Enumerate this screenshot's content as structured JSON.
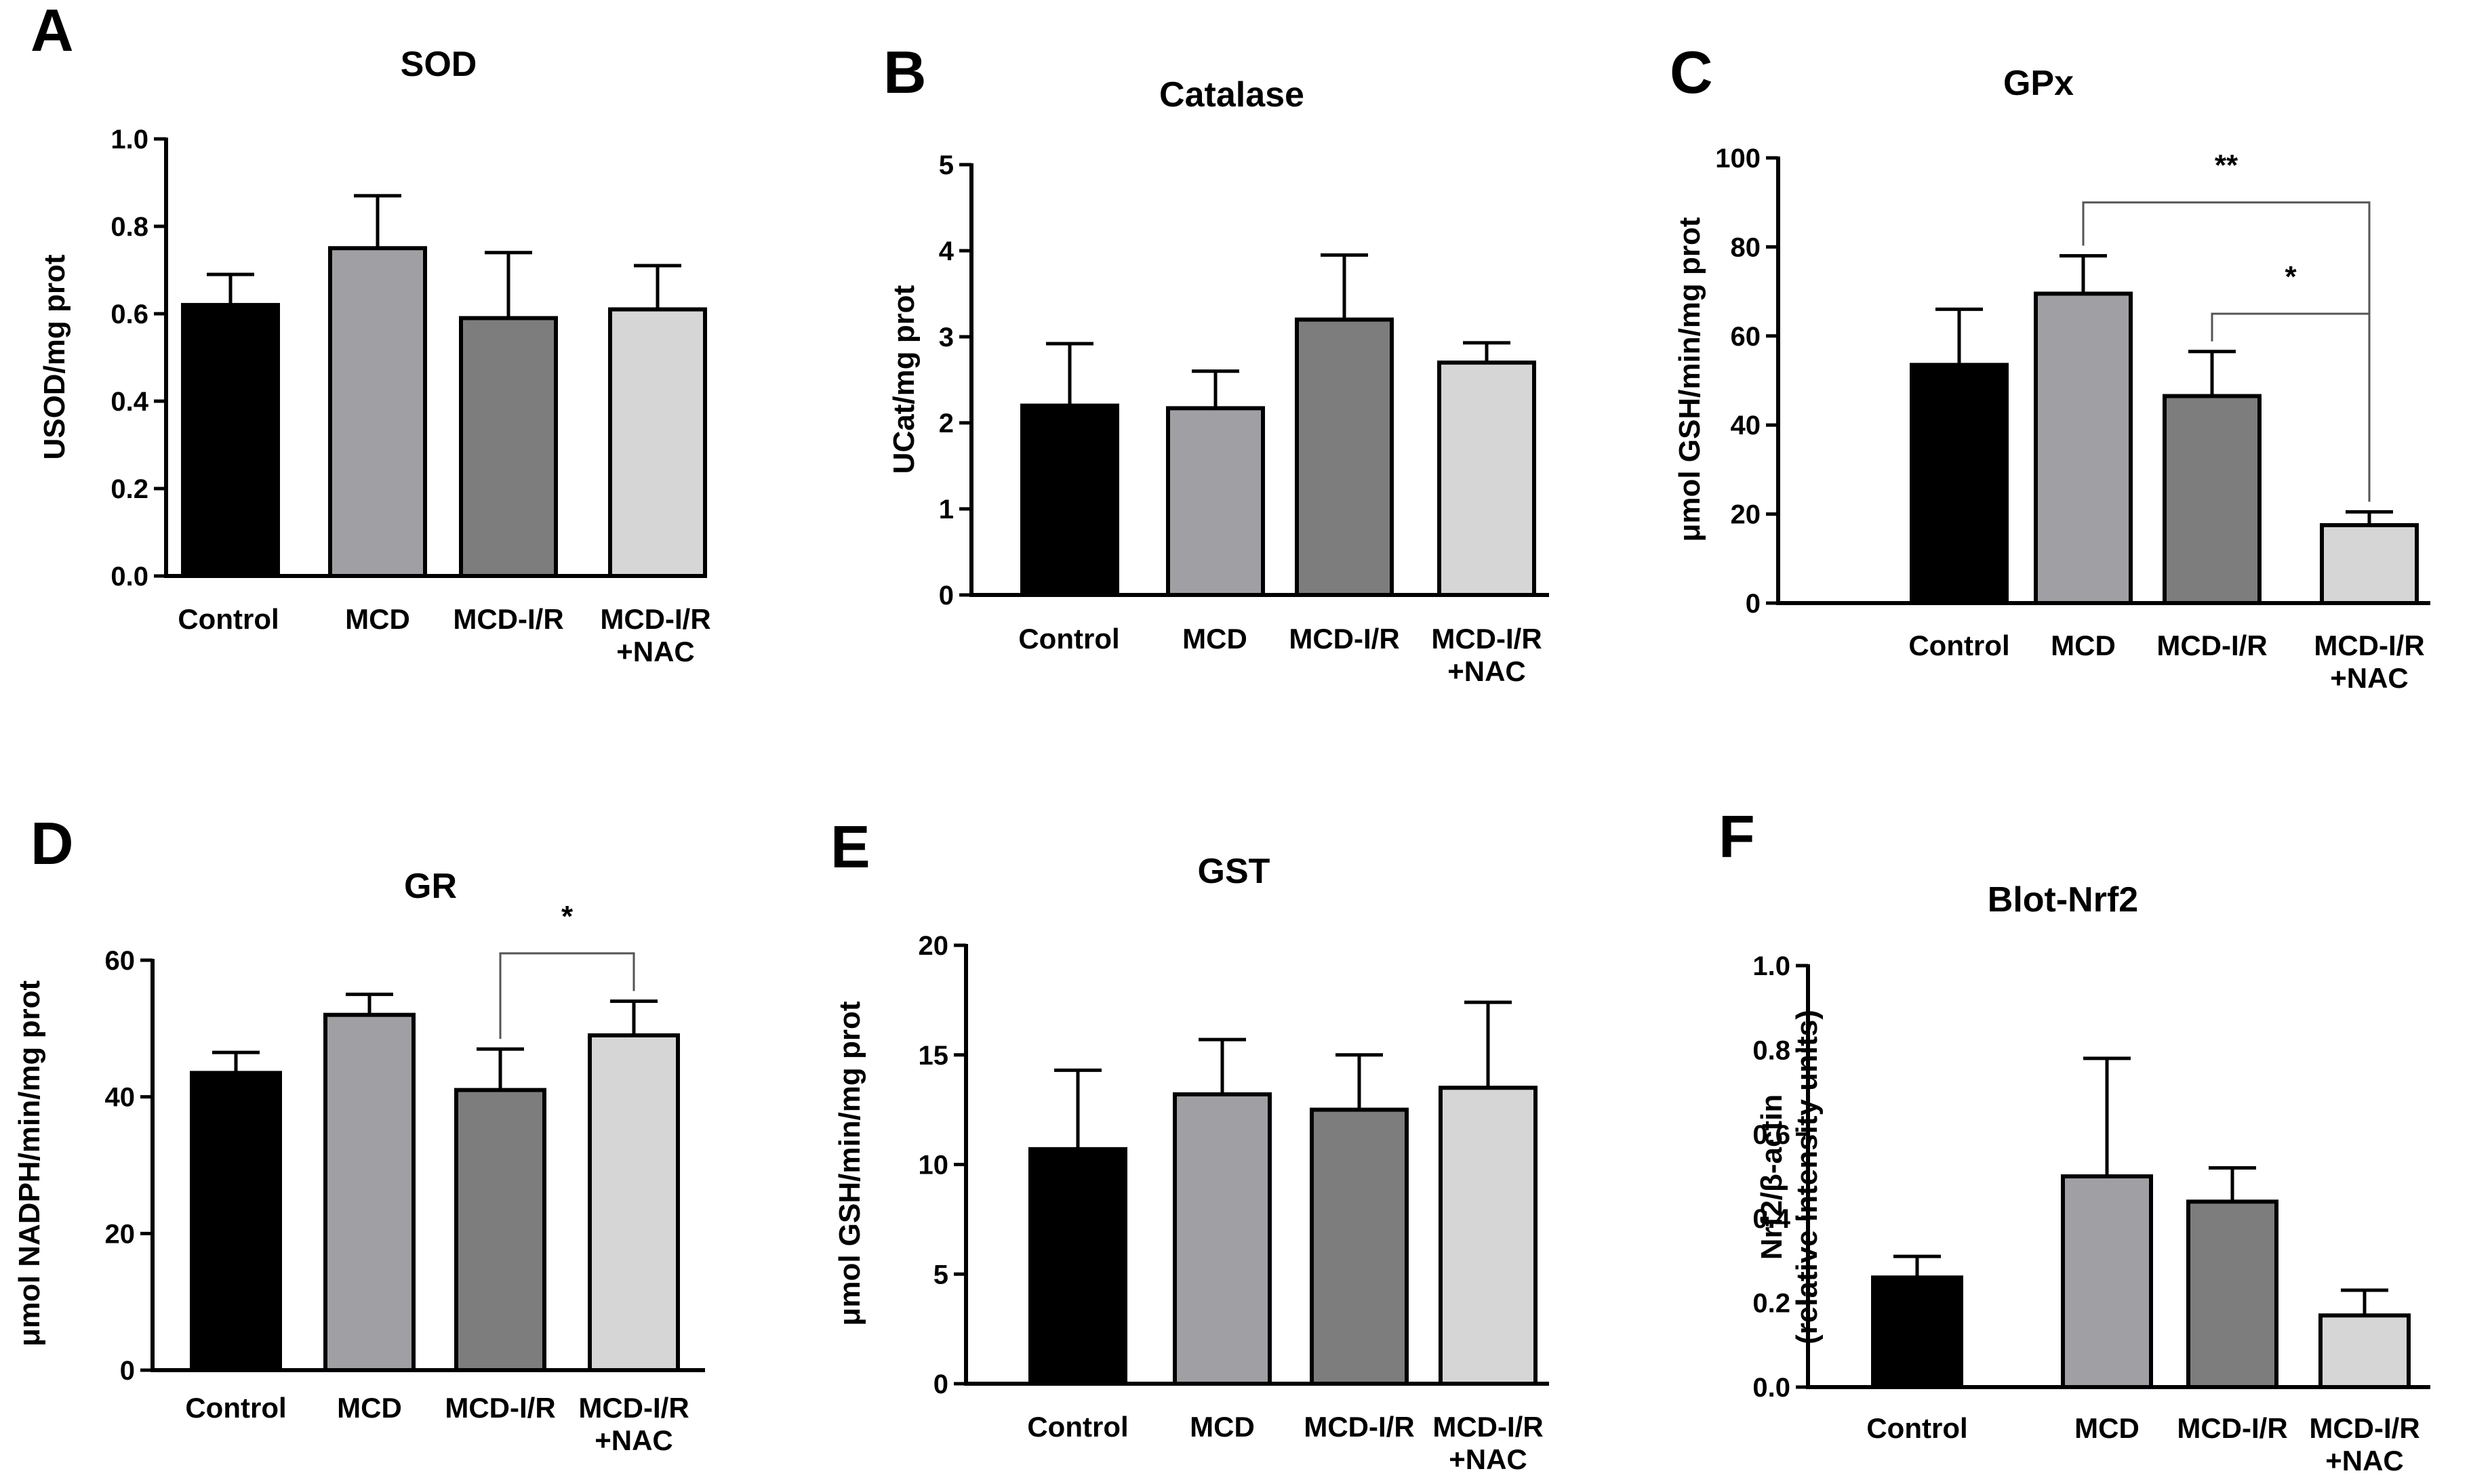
{
  "figure": {
    "group_colors": {
      "Control": "#000000",
      "MCD": "#a0a0a4",
      "MCD-I/R": "#7d7d7d",
      "MCD-I/R +NAC": "#d6d6d6"
    }
  },
  "chart_data": [
    {
      "id": "A",
      "type": "bar",
      "title": "SOD",
      "xlabel": "",
      "ylabel": "USOD/mg prot",
      "categories": [
        "Control",
        "MCD",
        "MCD-I/R",
        "MCD-I/R +NAC"
      ],
      "values": [
        0.62,
        0.75,
        0.59,
        0.61
      ],
      "errors": [
        0.07,
        0.12,
        0.15,
        0.1
      ],
      "ylim": [
        0,
        1.0
      ],
      "yticks": [
        "0.0",
        "0.2",
        "0.4",
        "0.6",
        "0.8",
        "1.0"
      ],
      "significance": []
    },
    {
      "id": "B",
      "type": "bar",
      "title": "Catalase",
      "xlabel": "",
      "ylabel": "UCat/mg prot",
      "categories": [
        "Control",
        "MCD",
        "MCD-I/R",
        "MCD-I/R +NAC"
      ],
      "values": [
        2.2,
        2.17,
        3.2,
        2.7
      ],
      "errors": [
        0.72,
        0.43,
        0.75,
        0.23
      ],
      "ylim": [
        0,
        5
      ],
      "yticks": [
        "0",
        "1",
        "2",
        "3",
        "4",
        "5"
      ],
      "significance": []
    },
    {
      "id": "C",
      "type": "bar",
      "title": "GPx",
      "xlabel": "",
      "ylabel": "μmol GSH/min/mg prot",
      "categories": [
        "Control",
        "MCD",
        "MCD-I/R",
        "MCD-I/R +NAC"
      ],
      "values": [
        53.5,
        69.5,
        46.5,
        17.5
      ],
      "errors": [
        12.5,
        8.5,
        10.0,
        3.0
      ],
      "ylim": [
        0,
        100
      ],
      "yticks": [
        "0",
        "20",
        "40",
        "60",
        "80",
        "100"
      ],
      "significance": [
        {
          "from": 1,
          "to": 3,
          "label": "**",
          "y": 90
        },
        {
          "from": 2,
          "to": 3,
          "label": "*",
          "y": 65
        }
      ]
    },
    {
      "id": "D",
      "type": "bar",
      "title": "GR",
      "xlabel": "",
      "ylabel": "μmol NADPH/min/mg prot",
      "categories": [
        "Control",
        "MCD",
        "MCD-I/R",
        "MCD-I/R +NAC"
      ],
      "values": [
        43.5,
        52.0,
        41.0,
        49.0
      ],
      "errors": [
        3.0,
        3.0,
        6.0,
        5.0
      ],
      "ylim": [
        0,
        60
      ],
      "yticks": [
        "0",
        "20",
        "40",
        "60"
      ],
      "significance": [
        {
          "from": 2,
          "to": 3,
          "label": "*",
          "y": 61
        }
      ]
    },
    {
      "id": "E",
      "type": "bar",
      "title": "GST",
      "xlabel": "",
      "ylabel": "μmol GSH/min/mg prot",
      "categories": [
        "Control",
        "MCD",
        "MCD-I/R",
        "MCD-I/R +NAC"
      ],
      "values": [
        10.7,
        13.2,
        12.5,
        13.5
      ],
      "errors": [
        3.6,
        2.5,
        2.5,
        3.9
      ],
      "ylim": [
        0,
        20
      ],
      "yticks": [
        "0",
        "5",
        "10",
        "15",
        "20"
      ],
      "significance": []
    },
    {
      "id": "F",
      "type": "bar",
      "title": "Blot-Nrf2",
      "xlabel": "",
      "ylabel": "Nrf2/β-actin",
      "ylabel2": "(relative intensity units)",
      "categories": [
        "Control",
        "MCD",
        "MCD-I/R",
        "MCD-I/R +NAC"
      ],
      "values": [
        0.26,
        0.5,
        0.44,
        0.17
      ],
      "errors": [
        0.05,
        0.28,
        0.08,
        0.06
      ],
      "ylim": [
        0,
        1.0
      ],
      "yticks": [
        "0.0",
        "0.2",
        "0.4",
        "0.6",
        "0.8",
        "1.0"
      ],
      "significance": []
    }
  ]
}
